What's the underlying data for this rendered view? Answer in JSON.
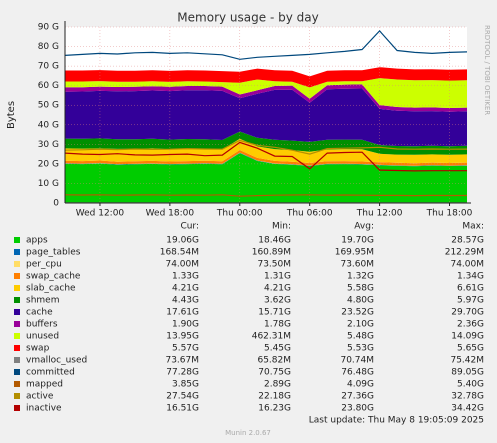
{
  "chart_data": {
    "type": "area",
    "title": "Memory usage - by day",
    "y_label": "Bytes",
    "watermark": "RRDTOOL / TOBI OETIKER",
    "categories": [
      null,
      null,
      "Wed 12:00",
      null,
      null,
      null,
      "Wed 18:00",
      null,
      null,
      null,
      "Thu 00:00",
      null,
      null,
      null,
      "Thu 06:00",
      null,
      null,
      null,
      "Thu 12:00",
      null,
      null,
      null,
      "Thu 18:00",
      null
    ],
    "ylim": [
      0,
      90
    ],
    "yticks": [
      0,
      {
        "value": 10,
        "label": "10 G"
      },
      {
        "value": 20,
        "label": "20 G"
      },
      {
        "value": 30,
        "label": "30 G"
      },
      {
        "value": 40,
        "label": "40 G"
      },
      {
        "value": 50,
        "label": "50 G"
      },
      {
        "value": 60,
        "label": "60 G"
      },
      {
        "value": 70,
        "label": "70 G"
      },
      {
        "value": 80,
        "label": "80 G"
      },
      {
        "value": 90,
        "label": "90 G"
      }
    ],
    "grid": true,
    "columns": [
      "Cur:",
      "Min:",
      "Avg:",
      "Max:"
    ],
    "series": [
      {
        "name": "apps",
        "color": "#00cc00",
        "style": "area",
        "stats": [
          "19.06G",
          "18.46G",
          "19.70G",
          "28.57G"
        ],
        "values": [
          20.1,
          19.9,
          20.2,
          19.6,
          19.8,
          20.0,
          19.7,
          19.9,
          20.1,
          19.8,
          25.5,
          21.5,
          20.0,
          19.6,
          18.9,
          19.8,
          19.9,
          19.7,
          19.3,
          19.0,
          18.8,
          19.1,
          18.9,
          19.06
        ]
      },
      {
        "name": "page_tables",
        "color": "#0066b3",
        "style": "area",
        "stats": [
          "168.54M",
          "160.89M",
          "169.95M",
          "212.29M"
        ],
        "values": [
          0.17,
          0.17,
          0.17,
          0.17,
          0.17,
          0.17,
          0.17,
          0.17,
          0.17,
          0.17,
          0.21,
          0.18,
          0.17,
          0.16,
          0.16,
          0.17,
          0.17,
          0.17,
          0.17,
          0.17,
          0.17,
          0.17,
          0.17,
          0.17
        ]
      },
      {
        "name": "per_cpu",
        "color": "#ffdd66",
        "style": "area",
        "stats": [
          "74.00M",
          "73.50M",
          "73.60M",
          "74.00M"
        ],
        "values": [
          0.07,
          0.07,
          0.07,
          0.07,
          0.07,
          0.07,
          0.07,
          0.07,
          0.07,
          0.07,
          0.07,
          0.07,
          0.07,
          0.07,
          0.07,
          0.07,
          0.07,
          0.07,
          0.07,
          0.07,
          0.07,
          0.07,
          0.07,
          0.074
        ]
      },
      {
        "name": "swap_cache",
        "color": "#ff8000",
        "style": "area",
        "stats": [
          "1.33G",
          "1.31G",
          "1.32G",
          "1.34G"
        ],
        "values": [
          1.3,
          1.3,
          1.3,
          1.3,
          1.3,
          1.3,
          1.3,
          1.3,
          1.3,
          1.3,
          1.3,
          1.3,
          1.3,
          1.3,
          1.3,
          1.3,
          1.3,
          1.3,
          1.33,
          1.33,
          1.33,
          1.33,
          1.33,
          1.33
        ]
      },
      {
        "name": "slab_cache",
        "color": "#ffcc00",
        "style": "area",
        "stats": [
          "4.21G",
          "4.21G",
          "5.58G",
          "6.61G"
        ],
        "values": [
          6.3,
          6.4,
          6.2,
          6.5,
          6.3,
          6.4,
          6.2,
          6.3,
          6.1,
          6.0,
          5.8,
          5.9,
          6.0,
          5.9,
          5.8,
          6.0,
          6.1,
          6.2,
          4.3,
          4.2,
          4.3,
          4.2,
          4.2,
          4.21
        ]
      },
      {
        "name": "shmem",
        "color": "#008f00",
        "style": "area",
        "stats": [
          "4.43G",
          "3.62G",
          "4.80G",
          "5.97G"
        ],
        "values": [
          5.0,
          5.0,
          5.1,
          5.0,
          5.0,
          4.9,
          5.0,
          5.0,
          4.9,
          4.9,
          3.7,
          4.4,
          4.8,
          4.9,
          5.0,
          5.0,
          4.9,
          4.9,
          4.5,
          4.4,
          4.4,
          4.4,
          4.4,
          4.43
        ]
      },
      {
        "name": "cache",
        "color": "#330099",
        "style": "area",
        "stats": [
          "17.61G",
          "15.71G",
          "23.52G",
          "29.70G"
        ],
        "values": [
          24.0,
          24.2,
          24.3,
          24.5,
          24.6,
          24.7,
          24.8,
          24.9,
          25.0,
          25.1,
          17.0,
          22.5,
          25.5,
          26.0,
          20.0,
          25.8,
          26.0,
          26.2,
          18.5,
          18.0,
          17.8,
          17.7,
          17.6,
          17.61
        ]
      },
      {
        "name": "buffers",
        "color": "#990099",
        "style": "area",
        "stats": [
          "1.90G",
          "1.78G",
          "2.10G",
          "2.36G"
        ],
        "values": [
          2.2,
          2.2,
          2.2,
          2.2,
          2.2,
          2.2,
          2.2,
          2.2,
          2.2,
          2.2,
          1.9,
          1.8,
          2.0,
          2.1,
          2.1,
          2.1,
          2.1,
          2.1,
          1.9,
          1.9,
          1.9,
          1.9,
          1.9,
          1.9
        ]
      },
      {
        "name": "unused",
        "color": "#ccff00",
        "style": "area",
        "stats": [
          "13.95G",
          "462.31M",
          "5.48G",
          "14.09G"
        ],
        "values": [
          3.0,
          2.9,
          2.8,
          2.7,
          2.6,
          2.5,
          2.5,
          2.4,
          2.3,
          2.3,
          6.0,
          5.5,
          2.4,
          2.0,
          5.8,
          1.8,
          1.7,
          1.6,
          13.8,
          14.1,
          14.0,
          14.0,
          14.0,
          13.95
        ]
      },
      {
        "name": "swap",
        "color": "#ff0000",
        "style": "area",
        "stats": [
          "5.57G",
          "5.45G",
          "5.53G",
          "5.65G"
        ],
        "values": [
          5.6,
          5.6,
          5.6,
          5.6,
          5.6,
          5.6,
          5.6,
          5.6,
          5.6,
          5.6,
          5.6,
          5.6,
          5.6,
          5.6,
          5.6,
          5.6,
          5.6,
          5.6,
          5.57,
          5.57,
          5.57,
          5.57,
          5.57,
          5.57
        ]
      },
      {
        "name": "vmalloc_used",
        "color": "#808080",
        "style": "line",
        "stats": [
          "73.67M",
          "65.82M",
          "70.74M",
          "75.42M"
        ],
        "values": [
          0.07,
          0.07,
          0.07,
          0.07,
          0.07,
          0.07,
          0.07,
          0.07,
          0.07,
          0.07,
          0.07,
          0.07,
          0.07,
          0.07,
          0.07,
          0.07,
          0.07,
          0.07,
          0.07,
          0.07,
          0.07,
          0.07,
          0.07,
          0.07
        ]
      },
      {
        "name": "committed",
        "color": "#00487d",
        "style": "line",
        "stats": [
          "77.28G",
          "70.75G",
          "76.48G",
          "89.05G"
        ],
        "values": [
          75.5,
          76.0,
          76.5,
          76.2,
          76.8,
          77.0,
          76.5,
          76.8,
          76.3,
          75.8,
          73.5,
          74.5,
          75.0,
          75.5,
          76.0,
          76.8,
          77.5,
          78.5,
          88.0,
          78.0,
          77.0,
          76.5,
          77.0,
          77.28
        ]
      },
      {
        "name": "mapped",
        "color": "#b35a00",
        "style": "line",
        "stats": [
          "3.85G",
          "2.89G",
          "4.09G",
          "5.40G"
        ],
        "values": [
          4.2,
          4.1,
          4.2,
          4.0,
          4.1,
          4.2,
          4.0,
          4.1,
          4.0,
          4.2,
          3.5,
          3.8,
          4.0,
          4.1,
          4.2,
          4.0,
          4.1,
          4.0,
          3.9,
          3.9,
          3.8,
          3.9,
          3.85,
          3.85
        ]
      },
      {
        "name": "active",
        "color": "#b38f00",
        "style": "line",
        "stats": [
          "27.54G",
          "22.18G",
          "27.36G",
          "32.78G"
        ],
        "values": [
          27.0,
          27.2,
          27.5,
          27.3,
          27.6,
          27.4,
          27.5,
          27.8,
          27.6,
          27.5,
          32.0,
          29.5,
          28.5,
          27.0,
          25.0,
          27.8,
          28.0,
          28.2,
          28.5,
          27.6,
          27.5,
          27.6,
          27.5,
          27.54
        ]
      },
      {
        "name": "inactive",
        "color": "#b30000",
        "style": "line",
        "stats": [
          "16.51G",
          "16.23G",
          "23.80G",
          "34.42G"
        ],
        "values": [
          25.5,
          25.0,
          24.8,
          25.2,
          24.6,
          24.5,
          24.8,
          25.0,
          24.2,
          24.5,
          31.0,
          28.0,
          24.0,
          23.8,
          17.5,
          25.5,
          25.8,
          26.0,
          16.8,
          16.6,
          16.4,
          16.5,
          16.5,
          16.51
        ]
      }
    ],
    "last_update": "Last update: Thu May  8 19:05:09 2025",
    "footer": "Munin 2.0.67"
  }
}
